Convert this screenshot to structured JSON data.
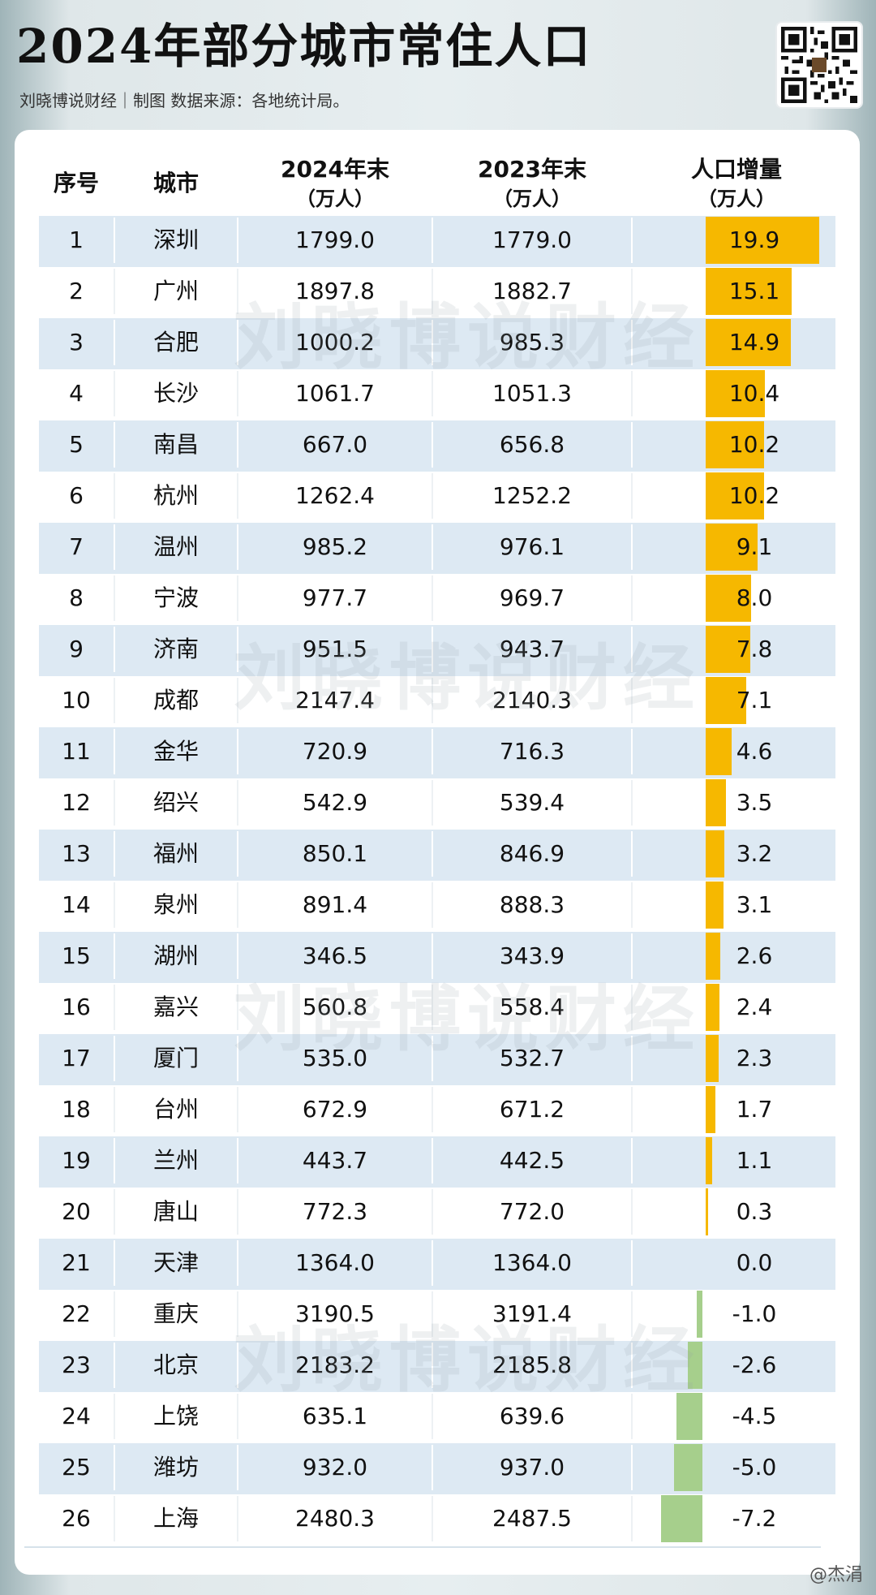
{
  "header": {
    "title": "2024年部分城市常住人口",
    "subtitle": "刘晓博说财经｜制图  数据来源：各地统计局。"
  },
  "watermark": "刘晓博说财经",
  "weibo_mark": "@杰涓",
  "colors": {
    "positive": "#f6b800",
    "negative": "#a6cf8c",
    "row_shade": "#dde9f3"
  },
  "columns": {
    "rank": "序号",
    "city": "城市",
    "y2024": "2024年末",
    "y2024_unit": "（万人）",
    "y2023": "2023年末",
    "y2023_unit": "（万人）",
    "delta": "人口增量",
    "delta_unit": "（万人）"
  },
  "chart_data": {
    "type": "table",
    "title": "2024年部分城市常住人口",
    "columns": [
      "序号",
      "城市",
      "2024年末（万人）",
      "2023年末（万人）",
      "人口增量（万人）"
    ],
    "rows": [
      {
        "rank": "1",
        "city": "深圳",
        "y2024": "1799.0",
        "y2023": "1779.0",
        "delta": "19.9"
      },
      {
        "rank": "2",
        "city": "广州",
        "y2024": "1897.8",
        "y2023": "1882.7",
        "delta": "15.1"
      },
      {
        "rank": "3",
        "city": "合肥",
        "y2024": "1000.2",
        "y2023": "985.3",
        "delta": "14.9"
      },
      {
        "rank": "4",
        "city": "长沙",
        "y2024": "1061.7",
        "y2023": "1051.3",
        "delta": "10.4"
      },
      {
        "rank": "5",
        "city": "南昌",
        "y2024": "667.0",
        "y2023": "656.8",
        "delta": "10.2"
      },
      {
        "rank": "6",
        "city": "杭州",
        "y2024": "1262.4",
        "y2023": "1252.2",
        "delta": "10.2"
      },
      {
        "rank": "7",
        "city": "温州",
        "y2024": "985.2",
        "y2023": "976.1",
        "delta": "9.1"
      },
      {
        "rank": "8",
        "city": "宁波",
        "y2024": "977.7",
        "y2023": "969.7",
        "delta": "8.0"
      },
      {
        "rank": "9",
        "city": "济南",
        "y2024": "951.5",
        "y2023": "943.7",
        "delta": "7.8"
      },
      {
        "rank": "10",
        "city": "成都",
        "y2024": "2147.4",
        "y2023": "2140.3",
        "delta": "7.1"
      },
      {
        "rank": "11",
        "city": "金华",
        "y2024": "720.9",
        "y2023": "716.3",
        "delta": "4.6"
      },
      {
        "rank": "12",
        "city": "绍兴",
        "y2024": "542.9",
        "y2023": "539.4",
        "delta": "3.5"
      },
      {
        "rank": "13",
        "city": "福州",
        "y2024": "850.1",
        "y2023": "846.9",
        "delta": "3.2"
      },
      {
        "rank": "14",
        "city": "泉州",
        "y2024": "891.4",
        "y2023": "888.3",
        "delta": "3.1"
      },
      {
        "rank": "15",
        "city": "湖州",
        "y2024": "346.5",
        "y2023": "343.9",
        "delta": "2.6"
      },
      {
        "rank": "16",
        "city": "嘉兴",
        "y2024": "560.8",
        "y2023": "558.4",
        "delta": "2.4"
      },
      {
        "rank": "17",
        "city": "厦门",
        "y2024": "535.0",
        "y2023": "532.7",
        "delta": "2.3"
      },
      {
        "rank": "18",
        "city": "台州",
        "y2024": "672.9",
        "y2023": "671.2",
        "delta": "1.7"
      },
      {
        "rank": "19",
        "city": "兰州",
        "y2024": "443.7",
        "y2023": "442.5",
        "delta": "1.1"
      },
      {
        "rank": "20",
        "city": "唐山",
        "y2024": "772.3",
        "y2023": "772.0",
        "delta": "0.3"
      },
      {
        "rank": "21",
        "city": "天津",
        "y2024": "1364.0",
        "y2023": "1364.0",
        "delta": "0.0"
      },
      {
        "rank": "22",
        "city": "重庆",
        "y2024": "3190.5",
        "y2023": "3191.4",
        "delta": "-1.0"
      },
      {
        "rank": "23",
        "city": "北京",
        "y2024": "2183.2",
        "y2023": "2185.8",
        "delta": "-2.6"
      },
      {
        "rank": "24",
        "city": "上饶",
        "y2024": "635.1",
        "y2023": "639.6",
        "delta": "-4.5"
      },
      {
        "rank": "25",
        "city": "潍坊",
        "y2024": "932.0",
        "y2023": "937.0",
        "delta": "-5.0"
      },
      {
        "rank": "26",
        "city": "上海",
        "y2024": "2480.3",
        "y2023": "2487.5",
        "delta": "-7.2"
      }
    ]
  }
}
